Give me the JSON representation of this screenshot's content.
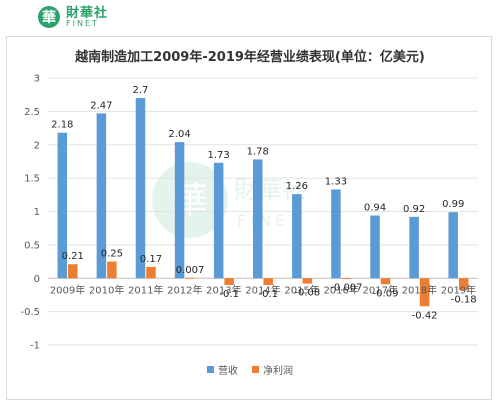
{
  "header": {
    "logo_mark": "華",
    "logo_cn": "財華社",
    "logo_en": "FINET"
  },
  "watermark": {
    "cn": "財華社",
    "en": "FINET"
  },
  "chart_data": {
    "type": "bar",
    "title": "越南制造加工2009年-2019年经营业绩表现(单位：亿美元)",
    "categories": [
      "2009年",
      "2010年",
      "2011年",
      "2012年",
      "2013年",
      "2014年",
      "2015年",
      "2016年",
      "2017年",
      "2018年",
      "2019年"
    ],
    "series": [
      {
        "name": "营收",
        "color": "#5b9bd5",
        "values": [
          2.18,
          2.47,
          2.7,
          2.04,
          1.73,
          1.78,
          1.26,
          1.33,
          0.94,
          0.92,
          0.99
        ],
        "labels": [
          "2.18",
          "2.47",
          "2.7",
          "2.04",
          "1.73",
          "1.78",
          "1.26",
          "1.33",
          "0.94",
          "0.92",
          "0.99"
        ]
      },
      {
        "name": "净利润",
        "color": "#ed7d31",
        "values": [
          0.21,
          0.25,
          0.17,
          0.007,
          -0.1,
          -0.1,
          -0.08,
          -0.007,
          -0.09,
          -0.42,
          -0.18
        ],
        "labels": [
          "0.21",
          "0.25",
          "0.17",
          "0.007",
          "-0.1",
          "-0.1",
          "-0.08",
          "-0.007",
          "-0.09",
          "-0.42",
          "-0.18"
        ]
      }
    ],
    "ylim": [
      -1,
      3
    ],
    "yticks": [
      -1,
      -0.5,
      0,
      0.5,
      1,
      1.5,
      2,
      2.5,
      3
    ],
    "ytick_labels": [
      "-1",
      "-0.5",
      "0",
      "0.5",
      "1",
      "1.5",
      "2",
      "2.5",
      "3"
    ],
    "grid": true,
    "legend_position": "bottom"
  }
}
